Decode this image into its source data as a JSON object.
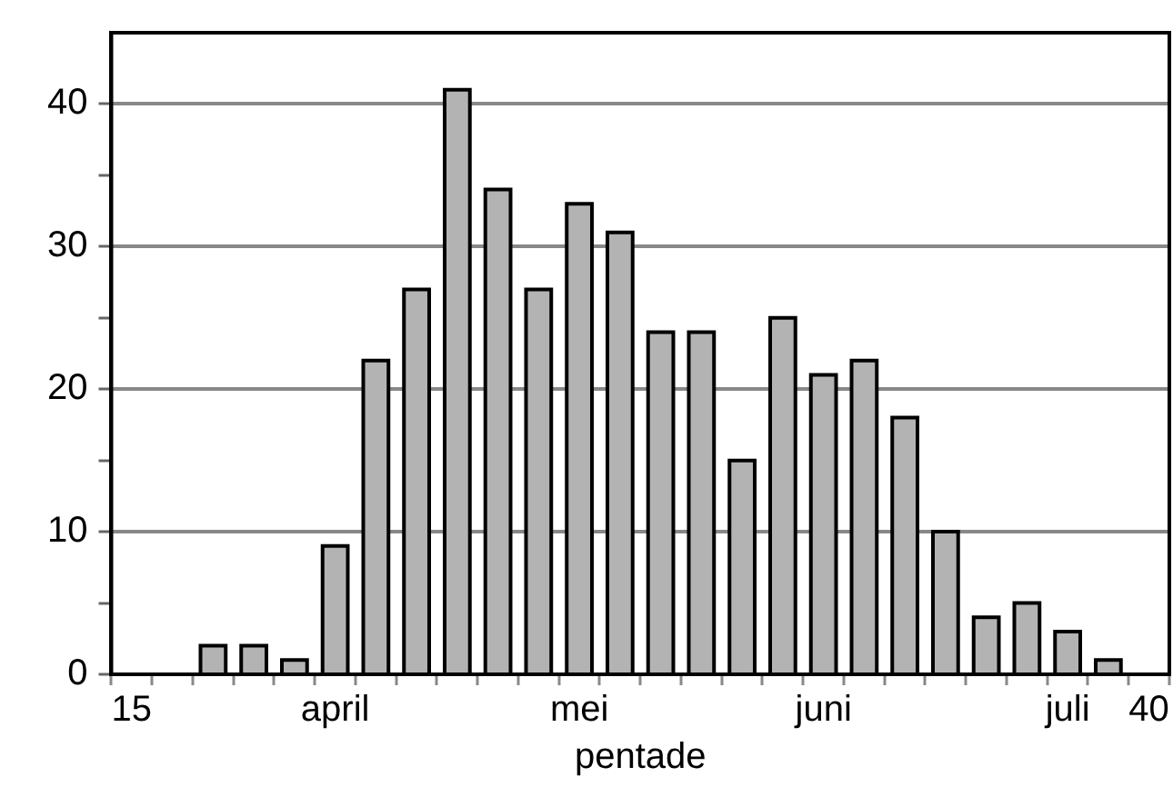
{
  "chart_data": {
    "type": "bar",
    "xlabel": "pentade",
    "categories": [
      "15",
      null,
      null,
      null,
      null,
      "april",
      null,
      null,
      null,
      null,
      null,
      "mei",
      null,
      null,
      null,
      null,
      null,
      "juni",
      null,
      null,
      null,
      null,
      null,
      "juli",
      null,
      "40"
    ],
    "values": [
      null,
      null,
      2,
      2,
      1,
      9,
      22,
      27,
      41,
      34,
      27,
      33,
      31,
      24,
      24,
      15,
      25,
      21,
      22,
      18,
      10,
      4,
      5,
      3,
      1,
      null
    ],
    "color": "#b3b3b3",
    "ylim": [
      0,
      45
    ],
    "yticks": [
      0,
      {
        "value": 5,
        "label": null
      },
      10,
      {
        "value": 15,
        "label": null
      },
      20,
      {
        "value": 25,
        "label": null
      },
      30,
      {
        "value": 35,
        "label": null
      },
      40
    ],
    "grid": "y",
    "legend": false
  }
}
